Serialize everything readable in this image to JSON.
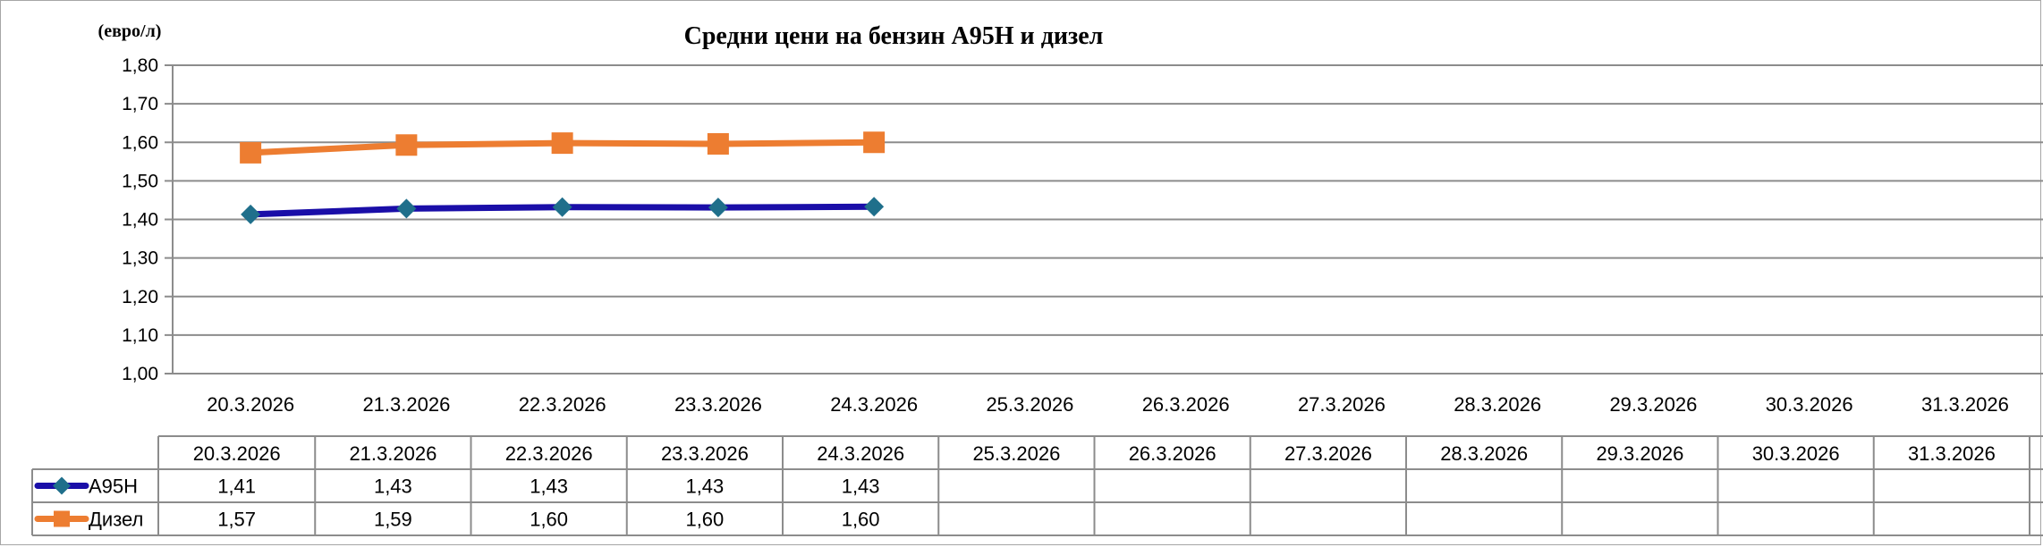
{
  "chart_data": {
    "type": "line",
    "title": "Средни цени на бензин А95Н и дизел",
    "ylabel": "(евро/л)",
    "xlabel": "",
    "ylim": [
      1.0,
      1.8
    ],
    "ytick_step": 0.1,
    "ytick_labels": [
      "1,00",
      "1,10",
      "1,20",
      "1,30",
      "1,40",
      "1,50",
      "1,60",
      "1,70",
      "1,80"
    ],
    "grid": true,
    "legend": "data-table-left",
    "categories": [
      "20.3.2026",
      "21.3.2026",
      "22.3.2026",
      "23.3.2026",
      "24.3.2026",
      "25.3.2026",
      "26.3.2026",
      "27.3.2026",
      "28.3.2026",
      "29.3.2026",
      "30.3.2026",
      "31.3.2026"
    ],
    "series": [
      {
        "name": "А95Н",
        "color": "#1a0ea8",
        "marker": "diamond",
        "marker_color": "#1f6f8b",
        "values": [
          1.413,
          1.428,
          1.432,
          1.431,
          1.433,
          null,
          null,
          null,
          null,
          null,
          null,
          null
        ],
        "table_values": [
          "1,41",
          "1,43",
          "1,43",
          "1,43",
          "1,43",
          "",
          "",
          "",
          "",
          "",
          "",
          ""
        ]
      },
      {
        "name": "Дизел",
        "color": "#ed7d31",
        "marker": "square",
        "marker_color": "#ed7d31",
        "values": [
          1.573,
          1.593,
          1.598,
          1.596,
          1.6,
          null,
          null,
          null,
          null,
          null,
          null,
          null
        ],
        "table_values": [
          "1,57",
          "1,59",
          "1,60",
          "1,60",
          "1,60",
          "",
          "",
          "",
          "",
          "",
          "",
          ""
        ]
      }
    ]
  }
}
